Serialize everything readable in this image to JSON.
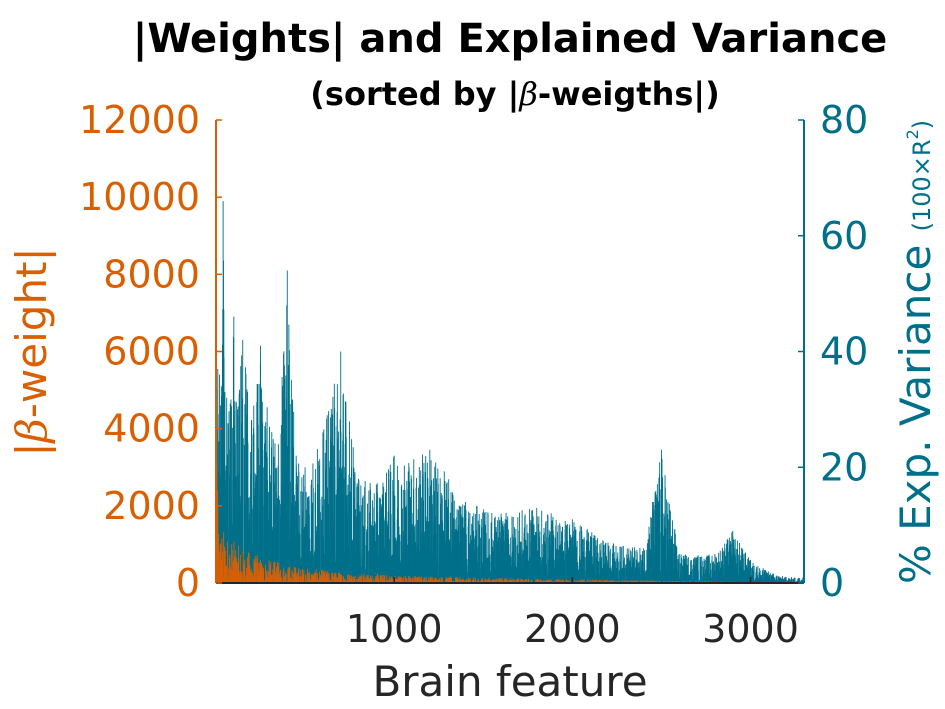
{
  "chart_data": {
    "type": "bar",
    "title": "|Weights| and Explained Variance",
    "subtitle_parts": [
      "(sorted by |",
      "β",
      "-weigths|)"
    ],
    "xlabel": "Brain feature",
    "ylabel_left_parts": [
      "|",
      "β",
      "-weight|"
    ],
    "ylabel_right_parts": [
      "% Exp. Variance ",
      "(100×R",
      "2",
      ")"
    ],
    "xlim": [
      0,
      3300
    ],
    "ylim_left": [
      0,
      12000
    ],
    "ylim_right": [
      0,
      80
    ],
    "xticks": [
      1000,
      2000,
      3000
    ],
    "yticks_left": [
      0,
      2000,
      4000,
      6000,
      8000,
      10000,
      12000
    ],
    "yticks_right": [
      0,
      20,
      40,
      60,
      80
    ],
    "grid": false,
    "n_features": 3300,
    "series": [
      {
        "axis": "left",
        "color": "#d95f02",
        "x": [
          1,
          2,
          3,
          5,
          8,
          10,
          15,
          20,
          30,
          40,
          50,
          60,
          80,
          100,
          120,
          150,
          200,
          250,
          300,
          400,
          500,
          600,
          700,
          800,
          1000,
          1200,
          1500,
          2000,
          2500,
          3000,
          3300
        ],
        "values": [
          10200,
          8200,
          5200,
          3000,
          2400,
          2000,
          1800,
          1600,
          1500,
          1450,
          1400,
          1300,
          1200,
          1100,
          1000,
          900,
          800,
          700,
          600,
          500,
          400,
          350,
          300,
          260,
          220,
          180,
          140,
          100,
          60,
          30,
          10
        ]
      },
      {
        "axis": "right",
        "color": "#00708a",
        "x": [
          1,
          10,
          20,
          30,
          40,
          50,
          60,
          80,
          100,
          120,
          150,
          200,
          250,
          300,
          350,
          400,
          450,
          500,
          600,
          700,
          800,
          900,
          1000,
          1200,
          1400,
          1600,
          1800,
          2000,
          2200,
          2400,
          2500,
          2600,
          2800,
          2900,
          3000,
          3100,
          3200,
          3300
        ],
        "values": [
          35,
          37,
          36,
          34,
          66,
          33,
          32,
          31,
          46,
          30,
          42,
          28,
          41,
          27,
          24,
          54,
          22,
          20,
          26,
          40,
          18,
          17,
          22,
          23,
          14,
          12,
          13,
          11,
          7,
          6,
          23,
          5,
          5,
          9,
          4,
          2,
          1,
          1
        ]
      }
    ]
  }
}
